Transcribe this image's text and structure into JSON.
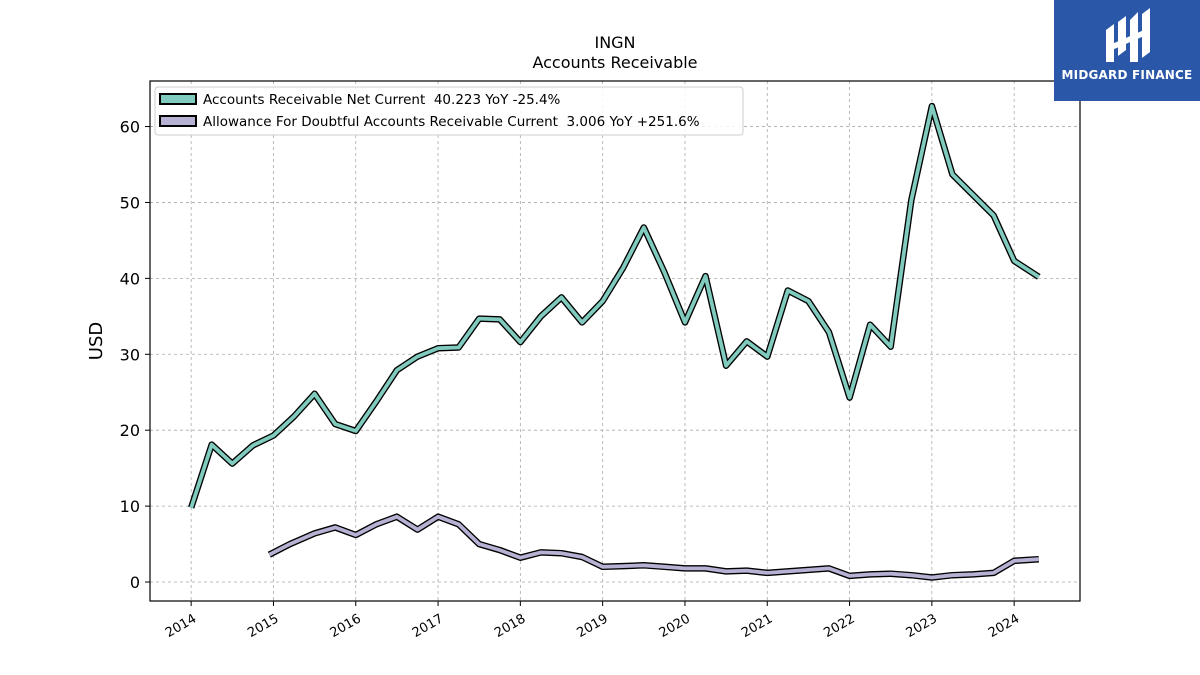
{
  "brand": {
    "name": "MIDGARD FINANCE",
    "bg_color": "#2b57a8"
  },
  "chart_data": {
    "type": "line",
    "title": "INGN",
    "subtitle": "Accounts Receivable",
    "xlabel": "",
    "ylabel": "USD",
    "xlim": [
      2013.5,
      2024.8
    ],
    "ylim": [
      -2.5,
      66
    ],
    "yticks": [
      0,
      10,
      20,
      30,
      40,
      50,
      60
    ],
    "xticks": [
      "2014",
      "2015",
      "2016",
      "2017",
      "2018",
      "2019",
      "2020",
      "2021",
      "2022",
      "2023",
      "2024"
    ],
    "grid": true,
    "legend_position": "top-left",
    "series": [
      {
        "name": "Accounts Receivable Net Current  40.223 YoY -25.4%",
        "color": "#80cbbd",
        "points": [
          [
            2014.0,
            9.8
          ],
          [
            2014.25,
            18.1
          ],
          [
            2014.5,
            15.6
          ],
          [
            2014.75,
            18.0
          ],
          [
            2015.0,
            19.3
          ],
          [
            2015.25,
            21.8
          ],
          [
            2015.5,
            24.8
          ],
          [
            2015.75,
            20.8
          ],
          [
            2016.0,
            19.9
          ],
          [
            2016.25,
            23.8
          ],
          [
            2016.5,
            27.9
          ],
          [
            2016.75,
            29.7
          ],
          [
            2017.0,
            30.8
          ],
          [
            2017.25,
            30.9
          ],
          [
            2017.5,
            34.7
          ],
          [
            2017.75,
            34.6
          ],
          [
            2018.0,
            31.6
          ],
          [
            2018.25,
            35.0
          ],
          [
            2018.5,
            37.5
          ],
          [
            2018.75,
            34.2
          ],
          [
            2019.0,
            37.0
          ],
          [
            2019.25,
            41.4
          ],
          [
            2019.5,
            46.7
          ],
          [
            2019.75,
            40.8
          ],
          [
            2020.0,
            34.2
          ],
          [
            2020.25,
            40.3
          ],
          [
            2020.5,
            28.5
          ],
          [
            2020.75,
            31.7
          ],
          [
            2021.0,
            29.7
          ],
          [
            2021.25,
            38.4
          ],
          [
            2021.5,
            37.0
          ],
          [
            2021.75,
            32.9
          ],
          [
            2022.0,
            24.3
          ],
          [
            2022.25,
            33.9
          ],
          [
            2022.5,
            31.0
          ],
          [
            2022.75,
            50.3
          ],
          [
            2023.0,
            62.7
          ],
          [
            2023.25,
            53.7
          ],
          [
            2023.5,
            51.0
          ],
          [
            2023.75,
            48.3
          ],
          [
            2024.0,
            42.3
          ],
          [
            2024.3,
            40.2
          ]
        ]
      },
      {
        "name": "Allowance For Doubtful Accounts Receivable Current  3.006 YoY +251.6%",
        "color": "#b6b2d4",
        "points": [
          [
            2014.95,
            3.6
          ],
          [
            2015.2,
            5.0
          ],
          [
            2015.5,
            6.4
          ],
          [
            2015.75,
            7.2
          ],
          [
            2016.0,
            6.2
          ],
          [
            2016.25,
            7.6
          ],
          [
            2016.5,
            8.6
          ],
          [
            2016.75,
            6.9
          ],
          [
            2017.0,
            8.6
          ],
          [
            2017.25,
            7.6
          ],
          [
            2017.5,
            5.0
          ],
          [
            2017.75,
            4.2
          ],
          [
            2018.0,
            3.2
          ],
          [
            2018.25,
            3.9
          ],
          [
            2018.5,
            3.8
          ],
          [
            2018.75,
            3.3
          ],
          [
            2019.0,
            2.0
          ],
          [
            2019.25,
            2.1
          ],
          [
            2019.5,
            2.2
          ],
          [
            2019.75,
            2.0
          ],
          [
            2020.0,
            1.8
          ],
          [
            2020.25,
            1.8
          ],
          [
            2020.5,
            1.4
          ],
          [
            2020.75,
            1.5
          ],
          [
            2021.0,
            1.2
          ],
          [
            2021.25,
            1.4
          ],
          [
            2021.5,
            1.6
          ],
          [
            2021.75,
            1.8
          ],
          [
            2022.0,
            0.8
          ],
          [
            2022.25,
            1.0
          ],
          [
            2022.5,
            1.1
          ],
          [
            2022.75,
            0.9
          ],
          [
            2023.0,
            0.6
          ],
          [
            2023.25,
            0.9
          ],
          [
            2023.5,
            1.0
          ],
          [
            2023.75,
            1.2
          ],
          [
            2024.0,
            2.8
          ],
          [
            2024.3,
            3.0
          ]
        ]
      }
    ]
  }
}
